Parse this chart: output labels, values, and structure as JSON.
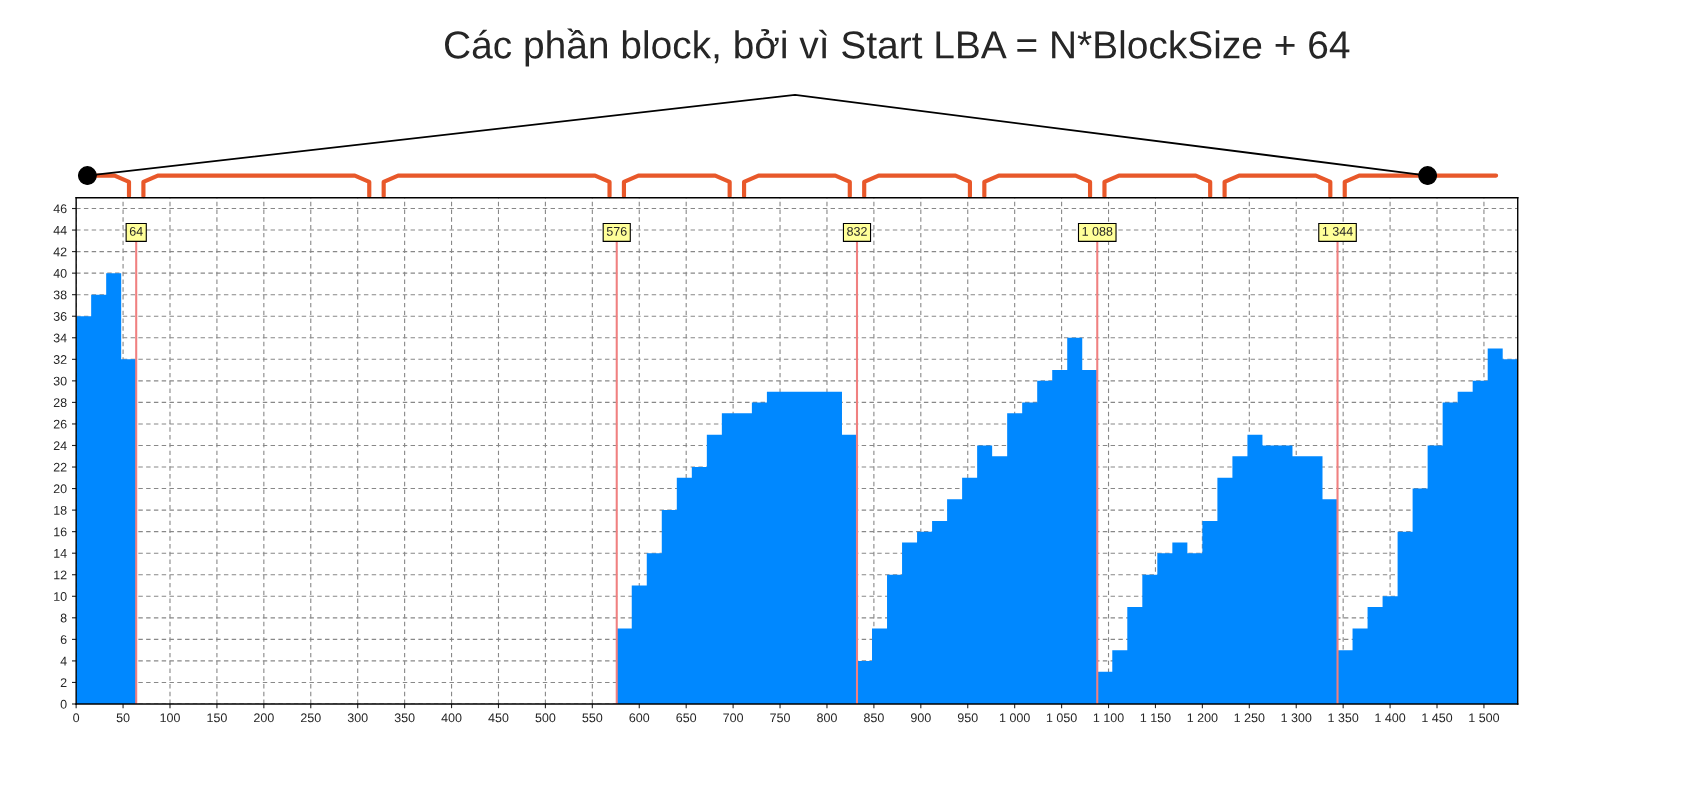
{
  "chart_data": {
    "type": "histogram",
    "title": "Các phần block, bởi vì Start LBA = N*BlockSize + 64",
    "bins": [
      0,
      16,
      32,
      48,
      64,
      576,
      592,
      608,
      624,
      640,
      656,
      672,
      688,
      704,
      720,
      736,
      752,
      768,
      784,
      800,
      816,
      832,
      848,
      864,
      880,
      896,
      912,
      928,
      944,
      960,
      976,
      992,
      1008,
      1024,
      1040,
      1056,
      1072,
      1088,
      1104,
      1120,
      1136,
      1152,
      1168,
      1184,
      1200,
      1216,
      1232,
      1248,
      1264,
      1280,
      1296,
      1312,
      1328,
      1344,
      1360,
      1376,
      1392,
      1408,
      1424,
      1440,
      1456,
      1472,
      1488,
      1504,
      1520,
      1536
    ],
    "values": [
      36,
      38,
      40,
      32,
      0,
      7,
      11,
      14,
      18,
      21,
      22,
      25,
      27,
      27,
      28,
      29,
      29,
      29,
      29,
      29,
      25,
      4,
      7,
      12,
      15,
      16,
      17,
      19,
      21,
      24,
      23,
      27,
      28,
      30,
      31,
      34,
      31,
      3,
      5,
      9,
      12,
      14,
      15,
      14,
      17,
      21,
      23,
      25,
      24,
      24,
      23,
      23,
      19,
      5,
      7,
      9,
      10,
      16,
      20,
      24,
      28,
      29,
      30,
      33,
      32
    ],
    "color": "#0088ff",
    "xlim": [
      0,
      1536
    ],
    "ylim": [
      0,
      47
    ],
    "xticks": [
      0,
      50,
      100,
      150,
      200,
      250,
      300,
      350,
      400,
      450,
      500,
      550,
      600,
      650,
      700,
      750,
      800,
      850,
      900,
      950,
      {
        "value": 1000,
        "label": "1 000"
      },
      {
        "value": 1050,
        "label": "1 050"
      },
      {
        "value": 1100,
        "label": "1 100"
      },
      {
        "value": 1150,
        "label": "1 150"
      },
      {
        "value": 1200,
        "label": "1 200"
      },
      {
        "value": 1250,
        "label": "1 250"
      },
      {
        "value": 1300,
        "label": "1 300"
      },
      {
        "value": 1350,
        "label": "1 350"
      },
      {
        "value": 1400,
        "label": "1 400"
      },
      {
        "value": 1450,
        "label": "1 450"
      },
      {
        "value": 1500,
        "label": "1 500"
      }
    ],
    "yticks": [
      0,
      2,
      4,
      6,
      8,
      10,
      12,
      14,
      16,
      18,
      20,
      22,
      24,
      26,
      28,
      30,
      32,
      34,
      36,
      38,
      40,
      42,
      44,
      46
    ],
    "ref_lines": [
      {
        "axis": "x",
        "value": 64,
        "label": "64",
        "color": "#f08080"
      },
      {
        "axis": "x",
        "value": 576,
        "label": "576",
        "color": "#f08080"
      },
      {
        "axis": "x",
        "value": 832,
        "label": "832",
        "color": "#f08080"
      },
      {
        "axis": "x",
        "value": 1088,
        "label": "1 088",
        "color": "#f08080"
      },
      {
        "axis": "x",
        "value": 1344,
        "label": "1 344",
        "color": "#f08080"
      }
    ],
    "grid": true
  }
}
